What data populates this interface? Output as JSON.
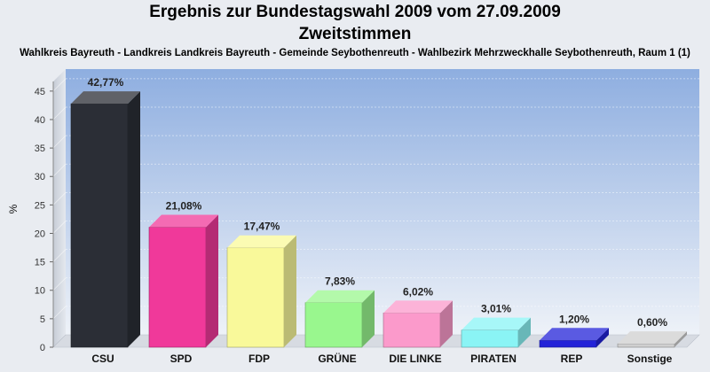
{
  "chart_data": {
    "type": "bar",
    "title": "Ergebnis zur Bundestagswahl 2009 vom 27.09.2009",
    "subtitle": "Zweitstimmen",
    "caption": "Wahlkreis Bayreuth - Landkreis Landkreis Bayreuth - Gemeinde Seybothenreuth - Wahlbezirk Mehrzweckhalle Seybothenreuth, Raum 1 (1)",
    "xlabel": "",
    "ylabel": "%",
    "ylim": [
      0,
      47
    ],
    "yticks": [
      "0",
      "5",
      "10",
      "15",
      "20",
      "25",
      "30",
      "35",
      "40",
      "45"
    ],
    "grid": true,
    "categories": [
      "CSU",
      "SPD",
      "FDP",
      "GRÜNE",
      "DIE LINKE",
      "PIRATEN",
      "REP",
      "Sonstige"
    ],
    "values": [
      42.77,
      21.08,
      17.47,
      7.83,
      6.02,
      3.01,
      1.2,
      0.6
    ],
    "data_labels": [
      "42,77%",
      "21,08%",
      "17,47%",
      "7,83%",
      "6,02%",
      "3,01%",
      "1,20%",
      "0,60%"
    ],
    "colors": [
      "#2b2e36",
      "#f0399a",
      "#f9f99a",
      "#99f78e",
      "#fb9acb",
      "#8af4f5",
      "#2323d8",
      "#cfcfcf"
    ]
  }
}
